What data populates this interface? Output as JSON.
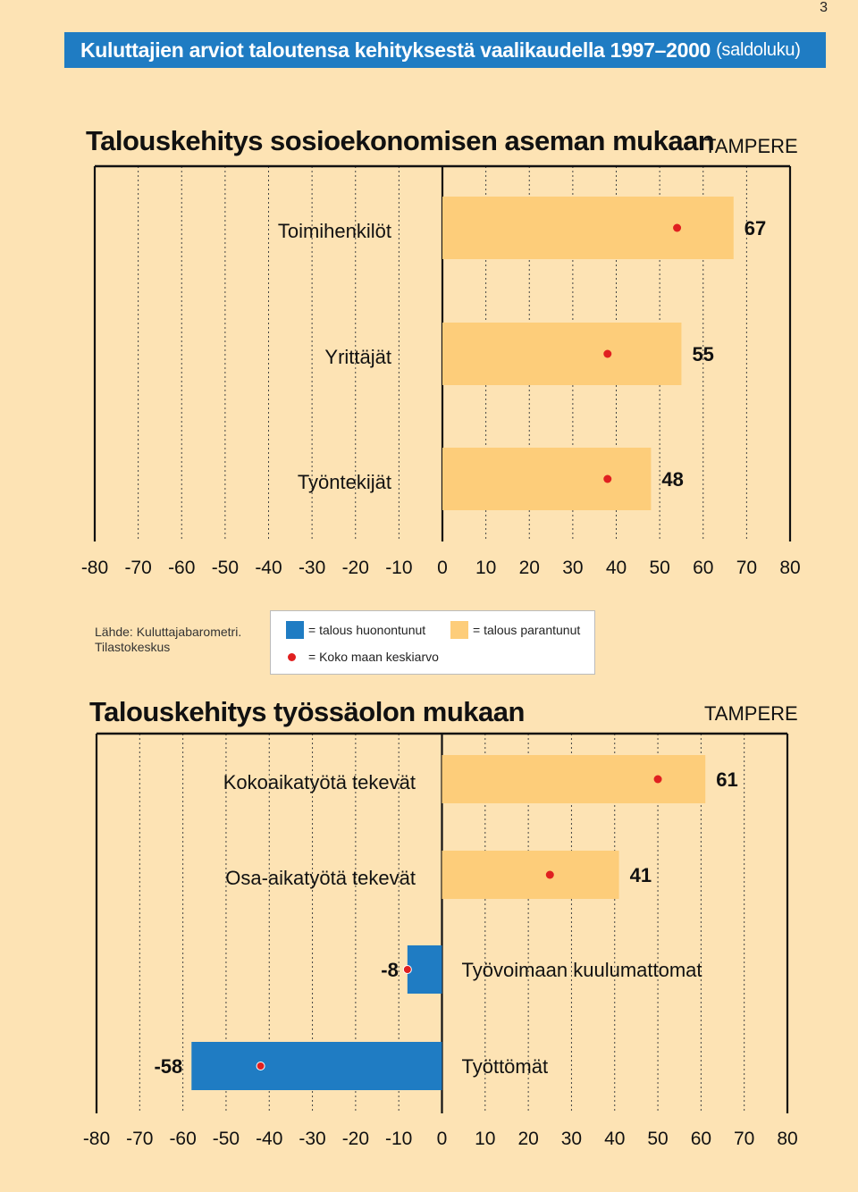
{
  "page_number": "3",
  "banner": {
    "title": "Kuluttajien arviot taloutensa kehityksestä vaalikaudella 1997–2000",
    "unit": "(saldoluku)"
  },
  "colors": {
    "negative": "#1f7cc3",
    "positive": "#fdcd7a",
    "dot": "#e02020",
    "background": "#fde3b4"
  },
  "source": {
    "line1": "Lähde: Kuluttajabarometri.",
    "line2": "Tilastokeskus"
  },
  "legend": {
    "negative_label": "= talous huonontunut",
    "positive_label": "= talous parantunut",
    "average_label": "= Koko maan keskiarvo"
  },
  "chart_data": [
    {
      "type": "bar",
      "orientation": "horizontal",
      "title": "Talouskehitys sosioekonomisen aseman mukaan",
      "region": "TAMPERE",
      "xlim": [
        -80,
        80
      ],
      "xticks": [
        -80,
        -70,
        -60,
        -50,
        -40,
        -30,
        -20,
        -10,
        0,
        10,
        20,
        30,
        40,
        50,
        60,
        70,
        80
      ],
      "grid": true,
      "categories": [
        "Toimihenkilöt",
        "Yrittäjät",
        "Työntekijät"
      ],
      "values": [
        67,
        55,
        48
      ],
      "value_labels": [
        "67",
        "55",
        "48"
      ],
      "national_average": [
        54,
        38,
        38
      ]
    },
    {
      "type": "bar",
      "orientation": "horizontal",
      "title": "Talouskehitys työssäolon mukaan",
      "region": "TAMPERE",
      "xlim": [
        -80,
        80
      ],
      "xticks": [
        -80,
        -70,
        -60,
        -50,
        -40,
        -30,
        -20,
        -10,
        0,
        10,
        20,
        30,
        40,
        50,
        60,
        70,
        80
      ],
      "grid": true,
      "categories": [
        "Kokoaikatyötä tekevät",
        "Osa-aikatyötä tekevät",
        "Työvoimaan kuulumattomat",
        "Työttömät"
      ],
      "values": [
        61,
        41,
        -8,
        -58
      ],
      "value_labels": [
        "61",
        "41",
        "-8",
        "-58"
      ],
      "national_average": [
        50,
        25,
        -8,
        -42
      ]
    }
  ]
}
